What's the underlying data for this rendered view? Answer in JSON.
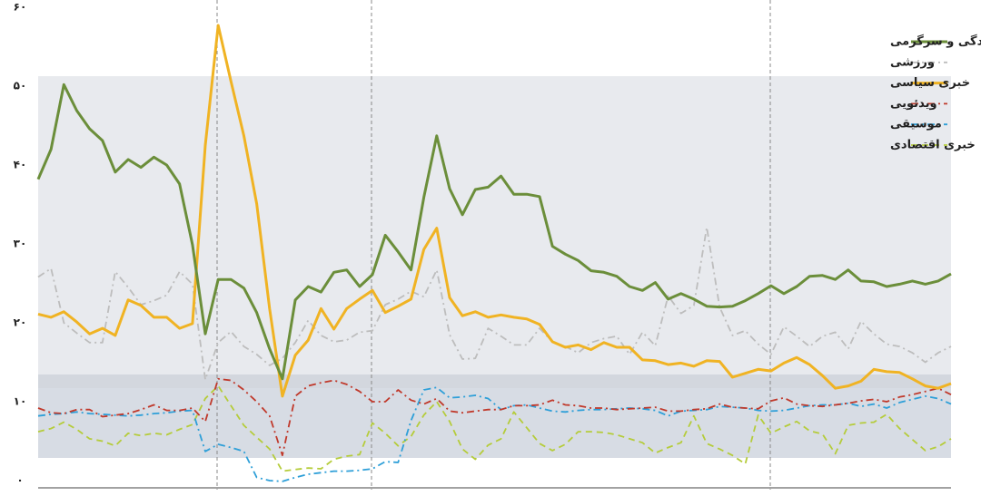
{
  "chart_data": {
    "type": "line",
    "ylim": [
      -1,
      60
    ],
    "yticks": [
      {
        "value": 0,
        "label": "۰"
      },
      {
        "value": 10,
        "label": "۱۰"
      },
      {
        "value": 20,
        "label": "۲۰"
      },
      {
        "value": 30,
        "label": "۳۰"
      },
      {
        "value": 40,
        "label": "۴۰"
      },
      {
        "value": 50,
        "label": "۵۰"
      },
      {
        "value": 60,
        "label": "۶۰"
      }
    ],
    "legend": "top-right",
    "series": [
      {
        "name": "سبک زندگی و سرگرمی",
        "color": "#6b8e3a",
        "style": "solid",
        "values": [
          38.2,
          42,
          50.2,
          46.9,
          44.6,
          43.1,
          39.1,
          40.7,
          39.7,
          41,
          40,
          37.6,
          29.9,
          18.6,
          25.5,
          25.5,
          24.4,
          21.3,
          16.7,
          12.9,
          22.9,
          24.6,
          23.9,
          26.4,
          26.7,
          24.6,
          26.1,
          31.1,
          29,
          26.7,
          35.9,
          43.7,
          37,
          33.7,
          36.9,
          37.2,
          38.6,
          36.3,
          36.3,
          36,
          29.7,
          28.7,
          27.9,
          26.6,
          26.4,
          25.9,
          24.6,
          24.1,
          25.1,
          23,
          23.7,
          23,
          22.1,
          22,
          22.1,
          22.8,
          23.7,
          24.7,
          23.7,
          24.6,
          25.9,
          26,
          25.5,
          26.7,
          25.3,
          25.2,
          24.6,
          24.9,
          25.3,
          24.9,
          25.3,
          26.2
        ]
      },
      {
        "name": "ورزشی",
        "color": "#bdbdbd",
        "style": "dashdot",
        "values": [
          25.8,
          26.9,
          20,
          18.7,
          17.5,
          17.5,
          26.5,
          24.5,
          22.3,
          22.8,
          23.5,
          26.5,
          24.9,
          12.8,
          17.5,
          18.9,
          17,
          16,
          14.6,
          15.5,
          17.5,
          20.3,
          18.4,
          17.6,
          17.8,
          18.8,
          19,
          22.3,
          23,
          24,
          23.3,
          26.7,
          18.5,
          15.4,
          15.5,
          19.3,
          18.3,
          17.2,
          17.2,
          19.3,
          17.6,
          17,
          16.2,
          17.5,
          18,
          18.3,
          16,
          18.8,
          17.1,
          23.4,
          21.2,
          22.2,
          32.1,
          22,
          18.4,
          19,
          17.3,
          16,
          19.5,
          18.3,
          17,
          18.3,
          18.8,
          16.7,
          20.2,
          18.6,
          17.3,
          17,
          16.2,
          15,
          16.2,
          17
        ]
      },
      {
        "name": "خبری سیاسی",
        "color": "#f0b323",
        "style": "solid",
        "values": [
          21.1,
          20.7,
          21.4,
          20.1,
          18.6,
          19.3,
          18.4,
          22.9,
          22.2,
          20.7,
          20.7,
          19.3,
          19.9,
          42.5,
          57.7,
          50.6,
          43.7,
          35.1,
          21.8,
          10.7,
          15.9,
          17.8,
          21.8,
          19.2,
          21.8,
          23,
          24.1,
          21.3,
          22.1,
          23,
          29.3,
          32,
          23.2,
          20.9,
          21.4,
          20.7,
          21,
          20.7,
          20.5,
          19.8,
          17.6,
          16.9,
          17.2,
          16.6,
          17.5,
          16.9,
          16.9,
          15.3,
          15.2,
          14.7,
          14.9,
          14.5,
          15.2,
          15.1,
          13.1,
          13.6,
          14.1,
          13.9,
          14.9,
          15.6,
          14.7,
          13.3,
          11.7,
          12,
          12.6,
          14.1,
          13.8,
          13.7,
          12.9,
          12,
          11.7,
          12.3
        ]
      },
      {
        "name": "ویدئویی",
        "color": "#c0392b",
        "style": "dashdot",
        "values": [
          9.2,
          8.6,
          8.5,
          9,
          9,
          8.1,
          8.3,
          8.5,
          9,
          9.6,
          8.9,
          8.9,
          9.2,
          7.5,
          12.9,
          12.7,
          11.5,
          10,
          8.2,
          3.2,
          10.7,
          12,
          12.4,
          12.7,
          12.2,
          11.3,
          10,
          10,
          11.5,
          10.2,
          9.7,
          10.4,
          8.8,
          8.6,
          8.8,
          9,
          9,
          9.5,
          9.5,
          9.6,
          10.2,
          9.6,
          9.5,
          9.2,
          9.2,
          9,
          9.1,
          9.2,
          9.3,
          8.8,
          8.8,
          9,
          9.1,
          9.7,
          9.3,
          9.2,
          9.1,
          10.1,
          10.5,
          9.7,
          9.5,
          9.4,
          9.6,
          9.8,
          10.1,
          10.3,
          10,
          10.6,
          10.9,
          11.3,
          11.7,
          10.9
        ]
      },
      {
        "name": "موسیقی",
        "color": "#2e9fd8",
        "style": "dashdot",
        "values": [
          8.2,
          8.4,
          8.5,
          8.7,
          8.5,
          8.4,
          8.3,
          8.2,
          8.3,
          8.5,
          8.6,
          8.8,
          8.9,
          3.7,
          4.6,
          4.2,
          3.7,
          0.4,
          0,
          -0.1,
          0.4,
          0.8,
          1,
          1.2,
          1.2,
          1.3,
          1.5,
          2.4,
          2.3,
          7.6,
          11.5,
          11.8,
          10.5,
          10.6,
          10.8,
          10.4,
          9,
          9.5,
          9.6,
          9.2,
          8.8,
          8.7,
          8.9,
          9,
          9,
          9.1,
          9.2,
          9.1,
          8.9,
          8.2,
          8.8,
          8.9,
          9,
          9.4,
          9.3,
          9.2,
          8.9,
          8.8,
          8.9,
          9.2,
          9.5,
          9.6,
          9.6,
          9.8,
          9.4,
          9.7,
          9.2,
          9.9,
          10.3,
          10.7,
          10.4,
          9.7
        ]
      },
      {
        "name": "خبری اقتصادی",
        "color": "#b5cc3a",
        "style": "dash",
        "values": [
          6.2,
          6.6,
          7.4,
          6.5,
          5.3,
          5,
          4.4,
          6,
          5.7,
          6,
          5.8,
          6.5,
          7.1,
          10.4,
          12,
          9.5,
          7,
          5.5,
          4,
          1.2,
          1.4,
          1.6,
          1.5,
          2.7,
          3.1,
          3.3,
          7.3,
          6,
          4.4,
          5.6,
          8.3,
          10,
          7.5,
          4,
          2.7,
          4.5,
          5.3,
          8.7,
          6.7,
          4.7,
          3.8,
          4.6,
          6.2,
          6.2,
          6.1,
          5.8,
          5.3,
          4.8,
          3.5,
          4.2,
          4.8,
          8.2,
          4.7,
          4,
          3.2,
          2.1,
          8.3,
          6,
          6.8,
          7.5,
          6.3,
          5.9,
          3.4,
          7,
          7.3,
          7.4,
          8.4,
          6.6,
          5.2,
          3.8,
          4.3,
          5.3
        ]
      }
    ]
  }
}
